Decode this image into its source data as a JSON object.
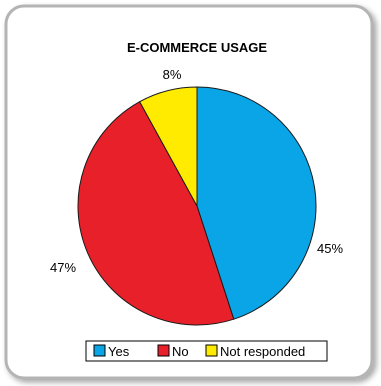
{
  "chart_data": {
    "type": "pie",
    "title": "E-COMMERCE USAGE",
    "slices": [
      {
        "label": "Yes",
        "value": 45,
        "display": "45%",
        "color": "#0aa5e6"
      },
      {
        "label": "No",
        "value": 47,
        "display": "47%",
        "color": "#e8202a"
      },
      {
        "label": "Not responded",
        "value": 8,
        "display": "8%",
        "color": "#ffeb00"
      }
    ],
    "legend_position": "bottom"
  }
}
